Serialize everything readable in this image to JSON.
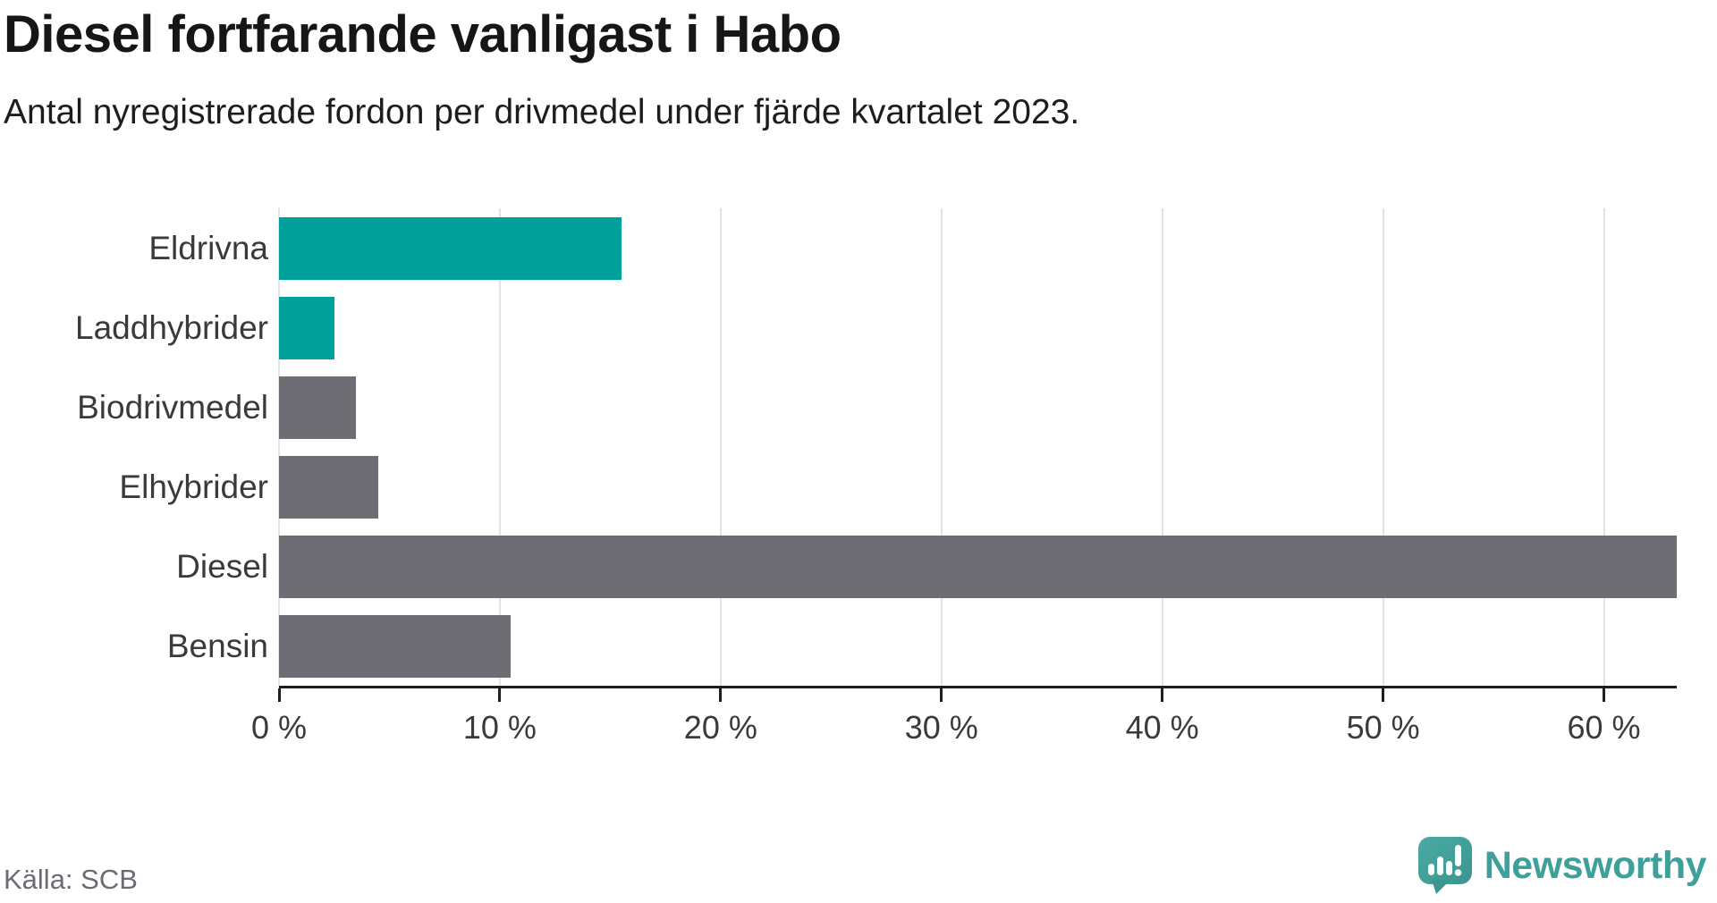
{
  "title": "Diesel fortfarande vanligast i Habo",
  "subtitle": "Antal nyregistrerade fordon per drivmedel under fjärde kvartalet 2023.",
  "source": "Källa: SCB",
  "branding": {
    "name": "Newsworthy",
    "brand_color": "#3EA09A"
  },
  "colors": {
    "highlight_bar": "#00A19A",
    "default_bar": "#6D6D73",
    "gridline": "#e3e3e3",
    "axis": "#1f1f1f",
    "title_text": "#161616",
    "label_text": "#3a3a3a",
    "source_text": "#6b6b75"
  },
  "chart_data": {
    "type": "bar",
    "orientation": "horizontal",
    "title": "Diesel fortfarande vanligast i Habo",
    "subtitle": "Antal nyregistrerade fordon per drivmedel under fjärde kvartalet 2023.",
    "categories": [
      "Eldrivna",
      "Laddhybrider",
      "Biodrivmedel",
      "Elhybrider",
      "Diesel",
      "Bensin"
    ],
    "values": [
      15.5,
      2.5,
      3.5,
      4.5,
      63.3,
      10.5
    ],
    "unit": "%",
    "bar_colors": [
      "#00A19A",
      "#00A19A",
      "#6D6D73",
      "#6D6D73",
      "#6D6D73",
      "#6D6D73"
    ],
    "xlim": [
      0,
      63.3
    ],
    "x_ticks": [
      0,
      10,
      20,
      30,
      40,
      50,
      60
    ],
    "x_tick_labels": [
      "0 %",
      "10 %",
      "20 %",
      "30 %",
      "40 %",
      "50 %",
      "60 %"
    ],
    "grid": "vertical-only",
    "legend": "none"
  }
}
